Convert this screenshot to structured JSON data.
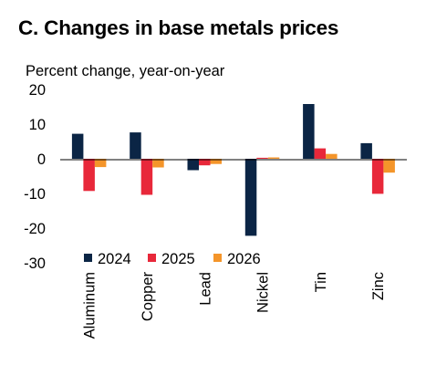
{
  "chart_data": {
    "type": "bar",
    "title": "C. Changes in base metals prices",
    "ylabel": "Percent change, year-on-year",
    "xlabel": "",
    "categories": [
      "Aluminum",
      "Copper",
      "Lead",
      "Nickel",
      "Tin",
      "Zinc"
    ],
    "series": [
      {
        "name": "2024",
        "color": "#0b2545",
        "values": [
          7.2,
          7.6,
          -3.3,
          -22.2,
          15.8,
          4.5
        ]
      },
      {
        "name": "2025",
        "color": "#e8283a",
        "values": [
          -9.3,
          -10.4,
          -1.9,
          0.3,
          3.0,
          -10.1
        ]
      },
      {
        "name": "2026",
        "color": "#f4952a",
        "values": [
          -2.4,
          -2.5,
          -1.5,
          0.4,
          1.4,
          -4.0
        ]
      }
    ],
    "ylim": [
      -30,
      20
    ],
    "yticks": [
      20,
      10,
      0,
      -10,
      -20,
      -30
    ],
    "grid": false,
    "legend_position": "bottom-left inside plot"
  }
}
